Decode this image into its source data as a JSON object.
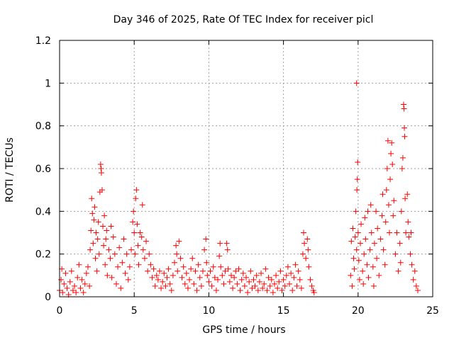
{
  "chart_data": {
    "type": "scatter",
    "title": "Day 346 of 2025, Rate Of TEC Index for receiver picl",
    "xlabel": "GPS time / hours",
    "ylabel": "ROTI / TECUs",
    "xlim": [
      0,
      25
    ],
    "ylim": [
      0,
      1.2
    ],
    "xticks": [
      0,
      5,
      10,
      15,
      20,
      25
    ],
    "xtick_labels": [
      "0",
      "5",
      "10",
      "15",
      "20",
      "25"
    ],
    "yticks": [
      0,
      0.2,
      0.4,
      0.6,
      0.8,
      1,
      1.2
    ],
    "ytick_labels": [
      "0",
      "0.2",
      "0.4",
      "0.6",
      "0.8",
      "1",
      "1.2"
    ],
    "grid": true,
    "marker": "+",
    "color": "#ff0000",
    "series": [
      {
        "name": "ROTI",
        "points": [
          [
            0.0,
            0.03
          ],
          [
            0.1,
            0.08
          ],
          [
            0.15,
            0.13
          ],
          [
            0.2,
            0.02
          ],
          [
            0.3,
            0.06
          ],
          [
            0.4,
            0.11
          ],
          [
            0.5,
            0.04
          ],
          [
            0.6,
            0.01
          ],
          [
            0.7,
            0.07
          ],
          [
            0.8,
            0.12
          ],
          [
            0.9,
            0.03
          ],
          [
            1.0,
            0.05
          ],
          [
            1.1,
            0.02
          ],
          [
            1.2,
            0.09
          ],
          [
            1.3,
            0.15
          ],
          [
            1.4,
            0.04
          ],
          [
            1.5,
            0.08
          ],
          [
            1.6,
            0.02
          ],
          [
            1.7,
            0.06
          ],
          [
            1.8,
            0.11
          ],
          [
            1.9,
            0.14
          ],
          [
            2.0,
            0.05
          ],
          [
            2.05,
            0.22
          ],
          [
            2.1,
            0.31
          ],
          [
            2.15,
            0.46
          ],
          [
            2.2,
            0.39
          ],
          [
            2.25,
            0.25
          ],
          [
            2.3,
            0.36
          ],
          [
            2.35,
            0.42
          ],
          [
            2.4,
            0.18
          ],
          [
            2.45,
            0.3
          ],
          [
            2.5,
            0.12
          ],
          [
            2.55,
            0.27
          ],
          [
            2.6,
            0.35
          ],
          [
            2.65,
            0.2
          ],
          [
            2.7,
            0.49
          ],
          [
            2.75,
            0.62
          ],
          [
            2.78,
            0.6
          ],
          [
            2.8,
            0.58
          ],
          [
            2.85,
            0.5
          ],
          [
            2.9,
            0.33
          ],
          [
            2.95,
            0.24
          ],
          [
            3.0,
            0.38
          ],
          [
            3.05,
            0.15
          ],
          [
            3.1,
            0.27
          ],
          [
            3.15,
            0.31
          ],
          [
            3.2,
            0.1
          ],
          [
            3.3,
            0.22
          ],
          [
            3.4,
            0.18
          ],
          [
            3.45,
            0.33
          ],
          [
            3.5,
            0.09
          ],
          [
            3.6,
            0.28
          ],
          [
            3.7,
            0.2
          ],
          [
            3.8,
            0.06
          ],
          [
            3.9,
            0.14
          ],
          [
            4.0,
            0.23
          ],
          [
            4.1,
            0.04
          ],
          [
            4.2,
            0.16
          ],
          [
            4.3,
            0.27
          ],
          [
            4.4,
            0.11
          ],
          [
            4.5,
            0.2
          ],
          [
            4.6,
            0.08
          ],
          [
            4.7,
            0.14
          ],
          [
            4.8,
            0.22
          ],
          [
            4.9,
            0.35
          ],
          [
            4.95,
            0.4
          ],
          [
            5.0,
            0.3
          ],
          [
            5.05,
            0.2
          ],
          [
            5.1,
            0.46
          ],
          [
            5.15,
            0.5
          ],
          [
            5.2,
            0.34
          ],
          [
            5.25,
            0.24
          ],
          [
            5.3,
            0.15
          ],
          [
            5.4,
            0.3
          ],
          [
            5.5,
            0.28
          ],
          [
            5.55,
            0.43
          ],
          [
            5.6,
            0.22
          ],
          [
            5.7,
            0.18
          ],
          [
            5.8,
            0.26
          ],
          [
            5.9,
            0.12
          ],
          [
            6.0,
            0.2
          ],
          [
            6.1,
            0.15
          ],
          [
            6.2,
            0.09
          ],
          [
            6.3,
            0.13
          ],
          [
            6.4,
            0.05
          ],
          [
            6.5,
            0.1
          ],
          [
            6.6,
            0.08
          ],
          [
            6.7,
            0.12
          ],
          [
            6.8,
            0.04
          ],
          [
            6.9,
            0.07
          ],
          [
            7.0,
            0.11
          ],
          [
            7.1,
            0.05
          ],
          [
            7.2,
            0.09
          ],
          [
            7.3,
            0.13
          ],
          [
            7.4,
            0.06
          ],
          [
            7.5,
            0.03
          ],
          [
            7.6,
            0.1
          ],
          [
            7.7,
            0.16
          ],
          [
            7.8,
            0.24
          ],
          [
            7.85,
            0.2
          ],
          [
            7.9,
            0.12
          ],
          [
            8.0,
            0.26
          ],
          [
            8.1,
            0.18
          ],
          [
            8.2,
            0.09
          ],
          [
            8.3,
            0.14
          ],
          [
            8.4,
            0.06
          ],
          [
            8.5,
            0.11
          ],
          [
            8.6,
            0.04
          ],
          [
            8.7,
            0.08
          ],
          [
            8.8,
            0.13
          ],
          [
            8.9,
            0.18
          ],
          [
            9.0,
            0.06
          ],
          [
            9.1,
            0.12
          ],
          [
            9.2,
            0.03
          ],
          [
            9.3,
            0.15
          ],
          [
            9.4,
            0.09
          ],
          [
            9.5,
            0.05
          ],
          [
            9.6,
            0.12
          ],
          [
            9.7,
            0.22
          ],
          [
            9.8,
            0.27
          ],
          [
            9.85,
            0.16
          ],
          [
            9.9,
            0.1
          ],
          [
            10.0,
            0.07
          ],
          [
            10.1,
            0.12
          ],
          [
            10.2,
            0.05
          ],
          [
            10.3,
            0.14
          ],
          [
            10.4,
            0.09
          ],
          [
            10.5,
            0.03
          ],
          [
            10.6,
            0.08
          ],
          [
            10.7,
            0.19
          ],
          [
            10.75,
            0.25
          ],
          [
            10.8,
            0.14
          ],
          [
            10.9,
            0.1
          ],
          [
            11.0,
            0.06
          ],
          [
            11.1,
            0.12
          ],
          [
            11.2,
            0.25
          ],
          [
            11.25,
            0.22
          ],
          [
            11.3,
            0.13
          ],
          [
            11.4,
            0.07
          ],
          [
            11.5,
            0.1
          ],
          [
            11.6,
            0.04
          ],
          [
            11.7,
            0.09
          ],
          [
            11.8,
            0.12
          ],
          [
            11.9,
            0.06
          ],
          [
            12.0,
            0.13
          ],
          [
            12.1,
            0.03
          ],
          [
            12.2,
            0.08
          ],
          [
            12.3,
            0.11
          ],
          [
            12.4,
            0.05
          ],
          [
            12.5,
            0.09
          ],
          [
            12.6,
            0.02
          ],
          [
            12.7,
            0.07
          ],
          [
            12.8,
            0.12
          ],
          [
            12.9,
            0.04
          ],
          [
            13.0,
            0.08
          ],
          [
            13.1,
            0.05
          ],
          [
            13.2,
            0.1
          ],
          [
            13.3,
            0.03
          ],
          [
            13.4,
            0.07
          ],
          [
            13.5,
            0.11
          ],
          [
            13.6,
            0.04
          ],
          [
            13.7,
            0.06
          ],
          [
            13.8,
            0.13
          ],
          [
            13.9,
            0.03
          ],
          [
            14.0,
            0.09
          ],
          [
            14.1,
            0.05
          ],
          [
            14.2,
            0.08
          ],
          [
            14.3,
            0.02
          ],
          [
            14.4,
            0.06
          ],
          [
            14.5,
            0.1
          ],
          [
            14.6,
            0.04
          ],
          [
            14.7,
            0.07
          ],
          [
            14.8,
            0.12
          ],
          [
            14.9,
            0.03
          ],
          [
            15.0,
            0.08
          ],
          [
            15.1,
            0.05
          ],
          [
            15.2,
            0.1
          ],
          [
            15.3,
            0.14
          ],
          [
            15.4,
            0.06
          ],
          [
            15.5,
            0.11
          ],
          [
            15.6,
            0.03
          ],
          [
            15.7,
            0.09
          ],
          [
            15.8,
            0.15
          ],
          [
            15.9,
            0.05
          ],
          [
            16.0,
            0.12
          ],
          [
            16.1,
            0.08
          ],
          [
            16.2,
            0.04
          ],
          [
            16.3,
            0.2
          ],
          [
            16.35,
            0.3
          ],
          [
            16.4,
            0.25
          ],
          [
            16.5,
            0.18
          ],
          [
            16.6,
            0.27
          ],
          [
            16.65,
            0.22
          ],
          [
            16.7,
            0.14
          ],
          [
            16.8,
            0.08
          ],
          [
            16.9,
            0.05
          ],
          [
            17.0,
            0.03
          ],
          [
            17.05,
            0.02
          ],
          [
            19.5,
            0.1
          ],
          [
            19.55,
            0.26
          ],
          [
            19.6,
            0.05
          ],
          [
            19.65,
            0.32
          ],
          [
            19.7,
            0.18
          ],
          [
            19.75,
            0.13
          ],
          [
            19.8,
            0.28
          ],
          [
            19.85,
            0.4
          ],
          [
            19.9,
            0.22
          ],
          [
            19.92,
            0.5
          ],
          [
            19.95,
            0.55
          ],
          [
            19.97,
            0.63
          ],
          [
            20.0,
            0.3
          ],
          [
            20.05,
            0.17
          ],
          [
            20.1,
            0.08
          ],
          [
            20.15,
            0.25
          ],
          [
            20.2,
            0.34
          ],
          [
            20.3,
            0.12
          ],
          [
            20.35,
            0.06
          ],
          [
            20.4,
            0.2
          ],
          [
            20.45,
            0.37
          ],
          [
            20.5,
            0.27
          ],
          [
            20.6,
            0.15
          ],
          [
            20.65,
            0.4
          ],
          [
            20.7,
            0.09
          ],
          [
            20.8,
            0.22
          ],
          [
            20.85,
            0.43
          ],
          [
            20.9,
            0.3
          ],
          [
            21.0,
            0.14
          ],
          [
            21.05,
            0.05
          ],
          [
            21.1,
            0.25
          ],
          [
            21.2,
            0.4
          ],
          [
            21.25,
            0.18
          ],
          [
            21.3,
            0.32
          ],
          [
            21.4,
            0.1
          ],
          [
            21.5,
            0.27
          ],
          [
            21.6,
            0.38
          ],
          [
            21.65,
            0.48
          ],
          [
            21.7,
            0.22
          ],
          [
            21.8,
            0.15
          ],
          [
            21.85,
            0.35
          ],
          [
            21.9,
            0.5
          ],
          [
            21.95,
            0.6
          ],
          [
            22.0,
            0.73
          ],
          [
            22.05,
            0.43
          ],
          [
            22.1,
            0.3
          ],
          [
            22.15,
            0.55
          ],
          [
            22.2,
            0.67
          ],
          [
            22.25,
            0.72
          ],
          [
            22.3,
            0.62
          ],
          [
            22.35,
            0.38
          ],
          [
            22.4,
            0.45
          ],
          [
            22.5,
            0.2
          ],
          [
            22.6,
            0.3
          ],
          [
            22.7,
            0.12
          ],
          [
            22.8,
            0.25
          ],
          [
            22.85,
            0.16
          ],
          [
            22.9,
            0.4
          ],
          [
            22.95,
            0.6
          ],
          [
            23.0,
            0.65
          ],
          [
            23.05,
            0.9
          ],
          [
            23.08,
            0.88
          ],
          [
            23.1,
            0.79
          ],
          [
            23.12,
            0.75
          ],
          [
            23.15,
            0.46
          ],
          [
            23.2,
            0.3
          ],
          [
            23.3,
            0.48
          ],
          [
            23.35,
            0.35
          ],
          [
            23.4,
            0.28
          ],
          [
            23.5,
            0.2
          ],
          [
            23.55,
            0.3
          ],
          [
            23.6,
            0.15
          ],
          [
            23.7,
            0.08
          ],
          [
            23.8,
            0.12
          ],
          [
            23.9,
            0.05
          ],
          [
            24.0,
            0.03
          ],
          [
            19.9,
            1.0
          ]
        ]
      }
    ]
  }
}
